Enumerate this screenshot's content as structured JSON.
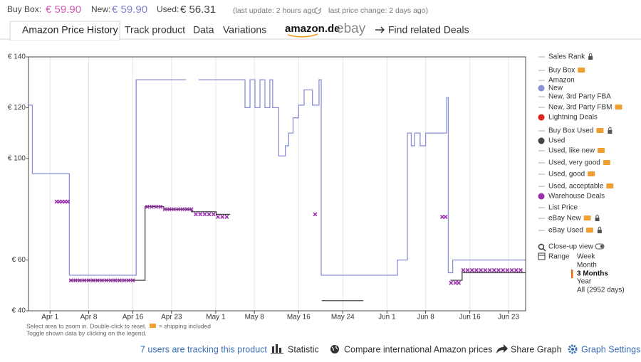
{
  "header": {
    "buy_box_label": "Buy Box:",
    "buy_box_price": "€ 59.90",
    "new_label": "New:",
    "new_price": "€ 59.90",
    "used_label": "Used:",
    "used_price": "€ 56.31",
    "last_update": "(last update: 2 hours ago",
    "last_change": "last price change: 2 days ago)"
  },
  "tabs": [
    "Amazon Price History",
    "Track product",
    "Data",
    "Variations"
  ],
  "deal_links": {
    "amazon": "amazon.de",
    "ebay": "ebay",
    "related": "Find related Deals"
  },
  "chart_data": {
    "type": "line",
    "xlim": [
      -3.9,
      86.1
    ],
    "ylim": [
      40,
      140
    ],
    "xticks": [
      {
        "value": 0,
        "label": "Apr 1"
      },
      {
        "value": 7,
        "label": "Apr 8"
      },
      {
        "value": 15,
        "label": "Apr 16"
      },
      {
        "value": 22,
        "label": "Apr 23"
      },
      {
        "value": 30,
        "label": "May 1"
      },
      {
        "value": 37,
        "label": "May 8"
      },
      {
        "value": 45,
        "label": "May 16"
      },
      {
        "value": 53,
        "label": "May 24"
      },
      {
        "value": 61,
        "label": "Jun 1"
      },
      {
        "value": 68,
        "label": "Jun 8"
      },
      {
        "value": 76,
        "label": "Jun 16"
      },
      {
        "value": 83,
        "label": "Jun 23"
      }
    ],
    "yticks": [
      {
        "value": 140,
        "label": "€ 140"
      },
      {
        "value": 120,
        "label": "€ 120"
      },
      {
        "value": 100,
        "label": "€ 100"
      },
      {
        "value": 60,
        "label": "€ 60"
      },
      {
        "value": 40,
        "label": "€ 40"
      }
    ],
    "grid": true,
    "series": [
      {
        "name": "New",
        "color": "#8a8fd6",
        "x": [
          -3.9,
          -3.2,
          -3.2,
          3.5,
          3.5,
          15.6,
          15.6,
          24.6,
          null,
          26.9,
          35.3,
          35.3,
          36.2,
          36.2,
          37.1,
          37.1,
          38.0,
          38.0,
          38.9,
          38.9,
          39.8,
          39.8,
          40.3,
          40.3,
          41.4,
          41.4,
          42.6,
          42.6,
          43.2,
          43.2,
          44.0,
          44.0,
          45.0,
          45.0,
          46.0,
          46.0,
          47.5,
          47.5,
          48.7,
          48.7,
          49.1,
          49.1,
          62.9,
          62.9,
          64.7,
          64.7,
          65.4,
          65.4,
          66.0,
          66.0,
          67.0,
          67.0,
          68.0,
          68.0,
          71.8,
          71.8,
          72.1,
          72.1,
          72.9,
          72.9,
          86.1
        ],
        "values": [
          121,
          121,
          94,
          94,
          54,
          54,
          131,
          131,
          null,
          131,
          131,
          120,
          120,
          131,
          131,
          120,
          120,
          131,
          131,
          120,
          120,
          131,
          131,
          120,
          120,
          101,
          101,
          105,
          105,
          110,
          110,
          116,
          116,
          121,
          121,
          127,
          127,
          121,
          121,
          131,
          131,
          54,
          54,
          60,
          60,
          110,
          110,
          105,
          105,
          110,
          110,
          105,
          105,
          110,
          110,
          124,
          124,
          55,
          55,
          60,
          60
        ]
      },
      {
        "name": "Used",
        "color": "#444444",
        "x": [
          3.5,
          17.2,
          17.2,
          20.6,
          20.6,
          25.6,
          25.6,
          30.1,
          30.1,
          32.6,
          null,
          49.2,
          56.7,
          null,
          72.5,
          74.6,
          74.6,
          86.1
        ],
        "values": [
          52,
          52,
          81,
          81,
          80,
          80,
          79,
          79,
          78,
          78,
          null,
          44,
          44,
          null,
          52,
          52,
          55,
          55
        ]
      },
      {
        "name": "Warehouse Deals",
        "color": "#9b2fae",
        "marker": "x",
        "x": [
          1.2,
          1.7,
          2.2,
          2.7,
          3.2,
          3.8,
          4.6,
          5.4,
          6.2,
          7.0,
          7.8,
          8.6,
          9.4,
          10.2,
          11.0,
          11.8,
          12.6,
          13.4,
          14.2,
          15.0,
          17.6,
          18.4,
          19.2,
          20.0,
          20.8,
          21.6,
          22.4,
          23.2,
          24.0,
          24.8,
          25.6,
          26.4,
          27.2,
          28.0,
          28.8,
          29.6,
          30.4,
          31.2,
          32.0,
          48.0,
          71.0,
          71.6,
          72.6,
          73.4,
          74.0,
          74.8,
          75.6,
          76.4,
          77.2,
          78.0,
          78.8,
          79.6,
          80.4,
          81.2,
          82.0,
          82.8,
          83.6,
          84.4,
          85.2
        ],
        "values": [
          83,
          83,
          83,
          83,
          83,
          52,
          52,
          52,
          52,
          52,
          52,
          52,
          52,
          52,
          52,
          52,
          52,
          52,
          52,
          52,
          81,
          81,
          81,
          81,
          80,
          80,
          80,
          80,
          80,
          80,
          80,
          78,
          78,
          78,
          78,
          78,
          77,
          77,
          77,
          78,
          77,
          77,
          51,
          51,
          51,
          56,
          56,
          56,
          56,
          56,
          56,
          56,
          56,
          56,
          56,
          56,
          56,
          56,
          56
        ]
      }
    ]
  },
  "chart_notes": [
    "Select area to zoom in. Double-click to reset.",
    "= shipping included",
    "Toggle shown data by clicking on the legend."
  ],
  "legend_panel": {
    "items": [
      "Sales Rank",
      "Buy Box",
      "Amazon",
      "New, 3rd Party FBA",
      "New, 3rd Party FBM",
      "Lightning Deals",
      "Buy Box Used",
      "Used, like new",
      "Used, very good",
      "Used, good",
      "Used, acceptable",
      "List Price",
      "eBay New",
      "eBay Used"
    ],
    "close_up": "Close-up view",
    "range_label": "Range",
    "ranges": [
      "Week",
      "Month",
      "3 Months",
      "Year",
      "All (2952 days)"
    ]
  },
  "footer": {
    "tracking": "7 users are tracking this product",
    "statistic": "Statistic",
    "compare": "Compare international Amazon prices",
    "share": "Share Graph",
    "settings": "Graph Settings"
  }
}
